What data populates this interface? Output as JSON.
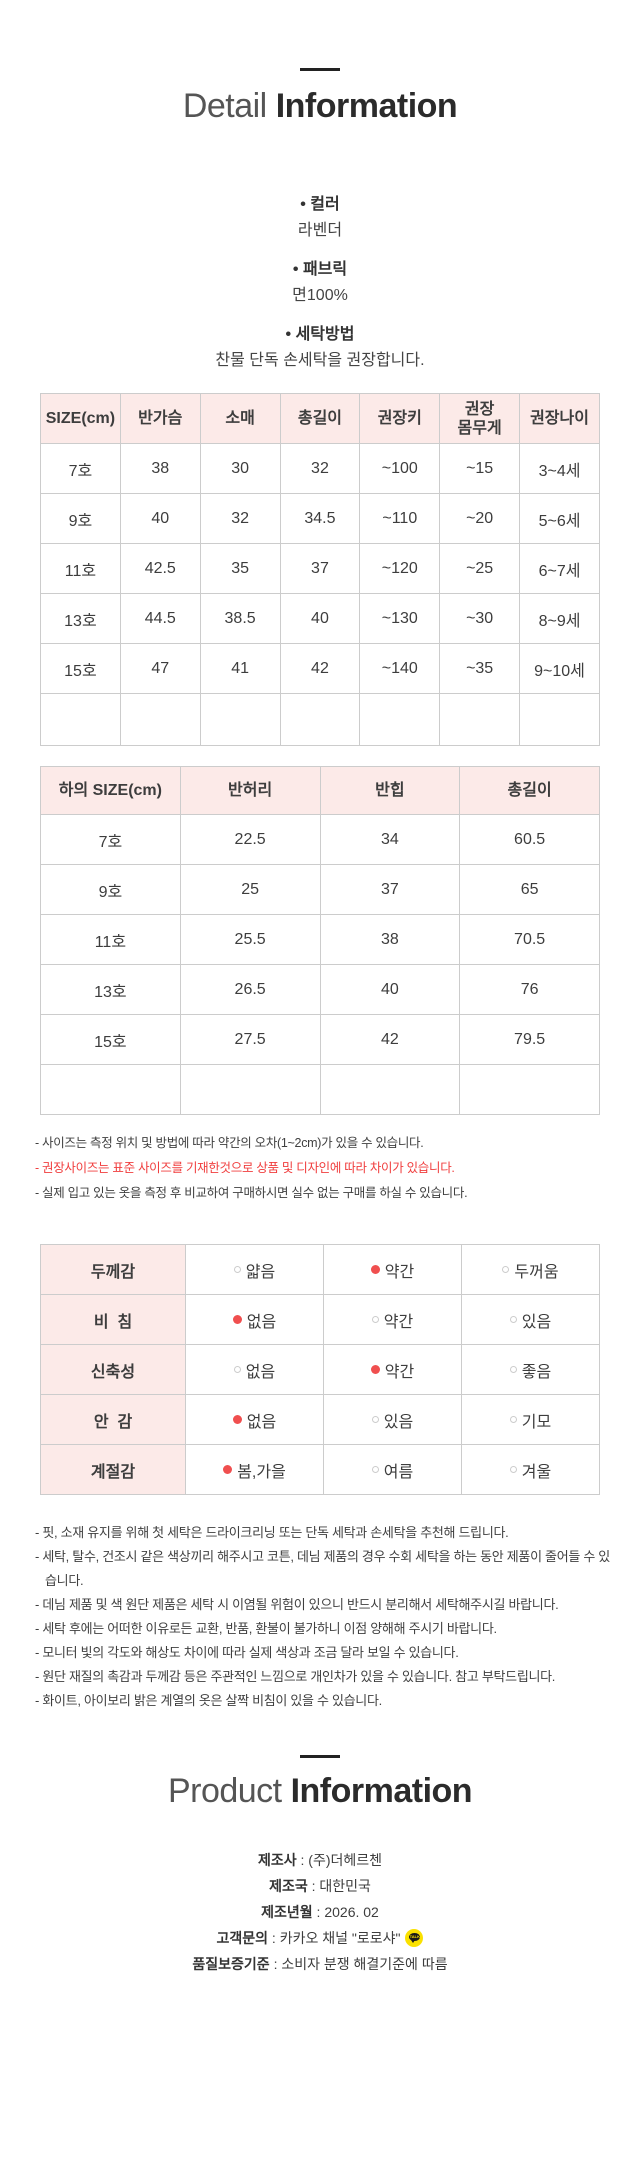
{
  "bullet_char": "•",
  "label_separator": " : ",
  "detail_title": {
    "light": "Detail",
    "bold": "Information"
  },
  "specs": [
    {
      "label": "컬러",
      "value": "라벤더"
    },
    {
      "label": "패브릭",
      "value": "면100%"
    },
    {
      "label": "세탁방법",
      "value": "찬물 단독 손세탁을 권장합니다."
    }
  ],
  "top_size_table": {
    "headers": [
      "SIZE(cm)",
      "반가슴",
      "소매",
      "총길이",
      "권장키",
      "권장\n몸무게",
      "권장나이"
    ],
    "rows": [
      [
        "7호",
        "38",
        "30",
        "32",
        "~100",
        "~15",
        "3~4세"
      ],
      [
        "9호",
        "40",
        "32",
        "34.5",
        "~110",
        "~20",
        "5~6세"
      ],
      [
        "11호",
        "42.5",
        "35",
        "37",
        "~120",
        "~25",
        "6~7세"
      ],
      [
        "13호",
        "44.5",
        "38.5",
        "40",
        "~130",
        "~30",
        "8~9세"
      ],
      [
        "15호",
        "47",
        "41",
        "42",
        "~140",
        "~35",
        "9~10세"
      ],
      [
        "",
        "",
        "",
        "",
        "",
        "",
        ""
      ]
    ]
  },
  "bottom_size_table": {
    "headers": [
      "하의 SIZE(cm)",
      "반허리",
      "반힙",
      "총길이"
    ],
    "rows": [
      [
        "7호",
        "22.5",
        "34",
        "60.5"
      ],
      [
        "9호",
        "25",
        "37",
        "65"
      ],
      [
        "11호",
        "25.5",
        "38",
        "70.5"
      ],
      [
        "13호",
        "26.5",
        "40",
        "76"
      ],
      [
        "15호",
        "27.5",
        "42",
        "79.5"
      ],
      [
        "",
        "",
        "",
        ""
      ]
    ]
  },
  "size_notes": [
    {
      "text": "- 사이즈는 측정 위치 및 방법에 따라 약간의 오차(1~2cm)가 있을 수 있습니다.",
      "red": false
    },
    {
      "text": "- 권장사이즈는 표준 사이즈를 기재한것으로 상품 및 디자인에 따라 차이가 있습니다.",
      "red": true
    },
    {
      "text": "- 실제 입고 있는 옷을 측정 후 비교하여 구매하시면 실수 없는 구매를 하실 수 있습니다.",
      "red": false
    }
  ],
  "fabric_attributes": [
    {
      "label": "두께감",
      "options": [
        "얇음",
        "약간",
        "두꺼움"
      ],
      "selected_index": 1
    },
    {
      "label": "비  침",
      "options": [
        "없음",
        "약간",
        "있음"
      ],
      "selected_index": 0
    },
    {
      "label": "신축성",
      "options": [
        "없음",
        "약간",
        "좋음"
      ],
      "selected_index": 1
    },
    {
      "label": "안  감",
      "options": [
        "없음",
        "있음",
        "기모"
      ],
      "selected_index": 0
    },
    {
      "label": "계절감",
      "options": [
        "봄,가을",
        "여름",
        "겨울"
      ],
      "selected_index": 0
    }
  ],
  "care_notes": [
    "- 핏, 소재 유지를 위해 첫 세탁은 드라이크리닝 또는 단독 세탁과 손세탁을 추천해 드립니다.",
    "- 세탁, 탈수, 건조시 같은 색상끼리 해주시고 코튼, 데님 제품의 경우 수회 세탁을 하는 동안 제품이 줄어들 수 있습니다.",
    "- 데님 제품 및 색 원단 제품은 세탁 시 이염될 위험이 있으니 반드시 분리해서 세탁해주시길 바랍니다.",
    "- 세탁 후에는 어떠한 이유로든 교환, 반품, 환불이 불가하니 이점 양해해 주시기 바랍니다.",
    "- 모니터 빛의 각도와 해상도 차이에 따라 실제 색상과 조금 달라 보일 수 있습니다.",
    "- 원단 재질의 촉감과 두께감 등은 주관적인 느낌으로 개인차가 있을 수 있습니다. 참고 부탁드립니다.",
    "- 화이트, 아이보리 밝은 계열의 옷은 살짝 비침이 있을 수 있습니다."
  ],
  "product_title": {
    "light": "Product",
    "bold": "Information"
  },
  "product_info": [
    {
      "label": "제조사",
      "value": "(주)더헤르첸",
      "icon": null
    },
    {
      "label": "제조국",
      "value": "대한민국",
      "icon": null
    },
    {
      "label": "제조년월",
      "value": "2026. 02",
      "icon": null
    },
    {
      "label": "고객문의",
      "value": "카카오 채널 \"로로샤\"",
      "icon": "kakao-talk-icon"
    },
    {
      "label": "품질보증기준",
      "value": "소비자 분쟁 해결기준에 따름",
      "icon": null
    }
  ],
  "kakao_icon": {
    "text": "TALK",
    "yellow": "#fae100",
    "black": "#191919"
  },
  "colors": {
    "table_header_pink": "#fceae8",
    "note_red": "#f03e3e",
    "selected_dot_red": "#f04f4f",
    "border_gray": "#cccccc",
    "title_dark": "#2b2b2b"
  }
}
